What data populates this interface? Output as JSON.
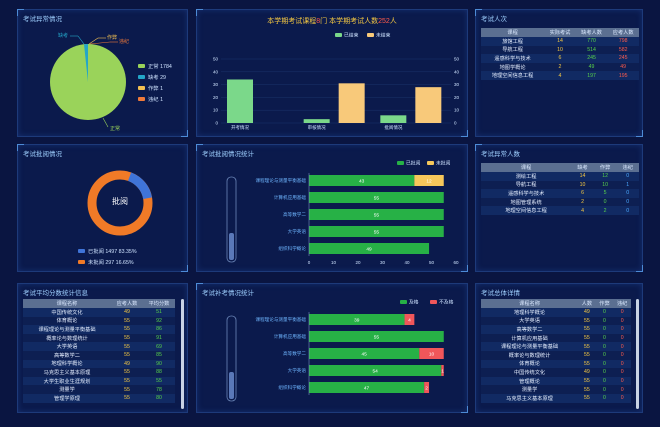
{
  "panels": {
    "exam_anomaly": "考试异常情况",
    "center_title": {
      "prefix": "本学期考试课程",
      "courses": "8",
      "mid": "门 本学期考试人数",
      "people": "252",
      "suffix": "人"
    },
    "exam_people": "考试人次",
    "exam_batch": "考试批阅情况",
    "batch_stats": "考试批阅情况统计",
    "exam_abnormal_people": "考试异常人数",
    "avg_score": "考试平均分数统计信息",
    "makeup_stats": "考试补考情况统计",
    "summary": "考试总体详情"
  },
  "pie_legend": [
    {
      "label": "正常",
      "value": "1784",
      "color": "#9ad35a"
    },
    {
      "label": "缺考",
      "value": "29",
      "color": "#23a6c8"
    },
    {
      "label": "作弊",
      "value": "1",
      "color": "#f3c052"
    },
    {
      "label": "违纪",
      "value": "1",
      "color": "#f07a3a"
    }
  ],
  "pie_callouts": {
    "a": "缺考",
    "b": "作弊",
    "c": "违纪",
    "d": "正常"
  },
  "donut": {
    "center": "批阅",
    "legend": [
      {
        "label": "已批阅",
        "value": "1497",
        "pct": "83.35%",
        "color": "#3f74d8"
      },
      {
        "label": "未批阅",
        "value": "297",
        "pct": "16.65%",
        "color": "#f07a27"
      }
    ]
  },
  "chart_data": [
    {
      "type": "bar",
      "title": "",
      "legend": [
        "已结束",
        "未结束"
      ],
      "categories": [
        "开考情况",
        "审核情况",
        "批阅情况"
      ],
      "series": [
        {
          "name": "已结束",
          "values": [
            34,
            3,
            6
          ]
        },
        {
          "name": "未结束",
          "values": [
            0,
            31,
            28
          ]
        }
      ],
      "ylim": [
        0,
        50
      ],
      "yticks": [
        "0",
        "10",
        "20",
        "30",
        "40",
        "50"
      ]
    },
    {
      "type": "bar",
      "orientation": "horizontal",
      "legend": [
        "已批阅",
        "未批阅"
      ],
      "categories": [
        "课程理论与测量平衡基础",
        "计算机应用基础",
        "高等数学二",
        "大学英语",
        "组织科学概论"
      ],
      "series": [
        {
          "name": "已批阅",
          "values": [
            43,
            55,
            55,
            55,
            49
          ]
        },
        {
          "name": "未批阅",
          "values": [
            12,
            0,
            0,
            0,
            0
          ]
        }
      ],
      "labels": [
        [
          "43",
          "12"
        ],
        [
          "55",
          ""
        ],
        [
          "55",
          ""
        ],
        [
          "55",
          ""
        ],
        [
          "49",
          ""
        ]
      ],
      "xlim": [
        0,
        60
      ],
      "xticks": [
        "0",
        "10",
        "20",
        "30",
        "40",
        "50",
        "60"
      ]
    },
    {
      "type": "bar",
      "orientation": "horizontal",
      "legend": [
        "及格",
        "不及格"
      ],
      "categories": [
        "课程理论与测量平衡基础",
        "计算机应用基础",
        "高等数学二",
        "大学英语",
        "组织科学概论"
      ],
      "series": [
        {
          "name": "及格",
          "values": [
            39,
            55,
            45,
            54,
            47
          ]
        },
        {
          "name": "不及格",
          "values": [
            4,
            0,
            10,
            1,
            2
          ]
        }
      ],
      "labels": [
        [
          "39",
          "4"
        ],
        [
          "55",
          ""
        ],
        [
          "45",
          "10"
        ],
        [
          "54",
          "1"
        ],
        [
          "47",
          "2"
        ]
      ],
      "xlim": [
        0,
        60
      ]
    }
  ],
  "people_table": {
    "headers": [
      "课程",
      "实际考试",
      "缺考人数",
      "应考人数"
    ],
    "rows": [
      [
        "旅馆工程",
        "14",
        "770",
        "798"
      ],
      [
        "导航工程",
        "10",
        "514",
        "582"
      ],
      [
        "遥感科学与技术",
        "6",
        "245",
        "245"
      ],
      [
        "地图学概论",
        "2",
        "49",
        "49"
      ],
      [
        "地理空间信息工程",
        "4",
        "197",
        "195"
      ]
    ]
  },
  "abnormal_table": {
    "headers": [
      "课程",
      "缺考",
      "作弊",
      "违纪"
    ],
    "rows": [
      [
        "测绘工程",
        "14",
        "12",
        "0"
      ],
      [
        "导航工程",
        "10",
        "10",
        "1"
      ],
      [
        "遥感科学与技术",
        "6",
        "5",
        "0"
      ],
      [
        "地图管理系统",
        "2",
        "0",
        "0"
      ],
      [
        "地理空间信息工程",
        "4",
        "2",
        "0"
      ]
    ]
  },
  "avg_table": {
    "headers": [
      "课程名称",
      "应考人数",
      "平均分数"
    ],
    "rows": [
      [
        "中国传统文化",
        "49",
        "51"
      ],
      [
        "体育概论",
        "55",
        "92"
      ],
      [
        "课程理论与测量平衡基础",
        "55",
        "86"
      ],
      [
        "概率论与数理统计",
        "55",
        "91"
      ],
      [
        "大学英语",
        "55",
        "69"
      ],
      [
        "高等数学二",
        "55",
        "85"
      ],
      [
        "地理科学概论",
        "49",
        "90"
      ],
      [
        "马克思主义基本原理",
        "55",
        "88"
      ],
      [
        "大学生职业生涯规划",
        "55",
        "55"
      ],
      [
        "测量学",
        "55",
        "78"
      ],
      [
        "管理学原理",
        "55",
        "80"
      ]
    ]
  },
  "summary_table": {
    "headers": [
      "课程名称",
      "人数",
      "作弊",
      "违纪"
    ],
    "rows": [
      [
        "地理科学概论",
        "49",
        "0",
        "0"
      ],
      [
        "大学英语",
        "55",
        "0",
        "0"
      ],
      [
        "高等数学二",
        "55",
        "0",
        "0"
      ],
      [
        "计算机应用基础",
        "55",
        "0",
        "0"
      ],
      [
        "课程理论与测量平衡基础",
        "55",
        "0",
        "0"
      ],
      [
        "概率论与数理统计",
        "55",
        "0",
        "0"
      ],
      [
        "体育概论",
        "55",
        "0",
        "0"
      ],
      [
        "中国传统文化",
        "49",
        "0",
        "0"
      ],
      [
        "管理概论",
        "55",
        "0",
        "0"
      ],
      [
        "测量学",
        "55",
        "0",
        "0"
      ],
      [
        "马克思主义基本原理",
        "55",
        "0",
        "0"
      ]
    ]
  }
}
